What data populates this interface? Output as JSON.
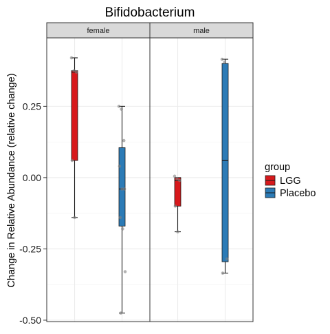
{
  "chart_data": {
    "type": "box",
    "title": "Bifidobacterium",
    "ylabel": "Change in Relative Abundance (relative change)",
    "xlabel": "",
    "ylim": [
      -0.505,
      0.49
    ],
    "yticks": [
      0.25,
      0.0,
      -0.25,
      -0.5
    ],
    "ytick_labels": [
      "0.25",
      "0.00",
      "-0.25",
      "-0.50"
    ],
    "grid": true,
    "facet_var": "sex",
    "facets": [
      "female",
      "male"
    ],
    "legend": {
      "title": "group",
      "placement": "right",
      "entries": [
        {
          "label": "LGG",
          "color": "#d7191c"
        },
        {
          "label": "Placebo",
          "color": "#2c7bb6"
        }
      ]
    },
    "series": [
      {
        "facet": "female",
        "group": "LGG",
        "color": "#d7191c",
        "q1": 0.06,
        "median": 0.37,
        "q3": 0.375,
        "whisker_low": -0.14,
        "whisker_high": 0.42,
        "points": [
          0.42,
          0.375,
          0.37,
          0.06,
          -0.14
        ]
      },
      {
        "facet": "female",
        "group": "Placebo",
        "color": "#2c7bb6",
        "q1": -0.17,
        "median": -0.04,
        "q3": 0.105,
        "whisker_low": -0.475,
        "whisker_high": 0.25,
        "points": [
          0.25,
          0.24,
          0.13,
          0.04,
          -0.04,
          -0.04,
          -0.14,
          -0.18,
          -0.33,
          -0.475
        ]
      },
      {
        "facet": "male",
        "group": "LGG",
        "color": "#d7191c",
        "q1": -0.1,
        "median": -0.01,
        "q3": 0.0,
        "whisker_low": -0.19,
        "whisker_high": 0.0,
        "points": [
          0.005,
          -0.005,
          -0.01,
          -0.1,
          -0.19
        ]
      },
      {
        "facet": "male",
        "group": "Placebo",
        "color": "#2c7bb6",
        "q1": -0.295,
        "median": 0.06,
        "q3": 0.4,
        "whisker_low": -0.335,
        "whisker_high": 0.415,
        "points": [
          0.415,
          0.405,
          -0.285,
          -0.335
        ]
      }
    ]
  }
}
